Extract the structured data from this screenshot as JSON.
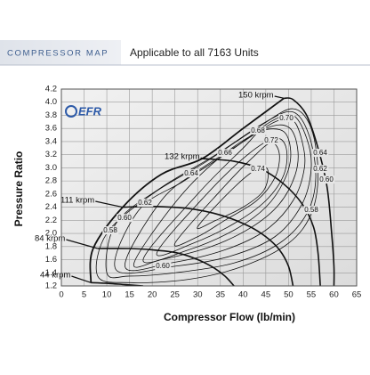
{
  "chart_data": {
    "type": "line",
    "title": "COMPRESSOR MAP",
    "subtitle": "Applicable to all 7163 Units",
    "logo": "EFR",
    "x_label": "Compressor Flow (lb/min)",
    "y_label": "Pressure Ratio",
    "xlim": [
      0,
      65
    ],
    "xticks": [
      0,
      5,
      10,
      15,
      20,
      25,
      30,
      35,
      40,
      45,
      50,
      55,
      60,
      65
    ],
    "ylim": [
      1.2,
      4.2
    ],
    "yticks": [
      1.2,
      1.4,
      1.6,
      1.8,
      {
        "value": 2,
        "label": "2.0"
      },
      2.2,
      2.4,
      2.6,
      2.8,
      {
        "value": 3,
        "label": "3.0"
      },
      3.2,
      3.4,
      3.6,
      3.8,
      {
        "value": 4,
        "label": "4.0"
      },
      4.2
    ],
    "grid": true,
    "color": "#111111",
    "series": [
      {
        "name": "44 krpm",
        "x": [
          6.5,
          10,
          14,
          18
        ],
        "values": [
          1.25,
          1.24,
          1.22,
          1.2
        ]
      },
      {
        "name": "84 krpm",
        "x": [
          8,
          15,
          20,
          25,
          29,
          33,
          36,
          38
        ],
        "values": [
          1.77,
          1.77,
          1.75,
          1.71,
          1.63,
          1.5,
          1.35,
          1.2
        ]
      },
      {
        "name": "111 krpm",
        "x": [
          13.5,
          20,
          28,
          35,
          41,
          45,
          48,
          50,
          51
        ],
        "values": [
          2.4,
          2.41,
          2.38,
          2.28,
          2.12,
          1.95,
          1.75,
          1.5,
          1.2
        ]
      },
      {
        "name": "132 krpm",
        "x": [
          31,
          38,
          44,
          49,
          53,
          55.5,
          56.5,
          57
        ],
        "values": [
          3.14,
          3.1,
          2.98,
          2.75,
          2.45,
          2.1,
          1.7,
          1.2
        ]
      },
      {
        "name": "150 krpm",
        "x": [
          49,
          51,
          54,
          56.5,
          58.5,
          59.5,
          60,
          60
        ],
        "values": [
          4.06,
          4.04,
          3.8,
          3.3,
          2.7,
          2.0,
          1.5,
          1.2
        ]
      }
    ],
    "surge_line": {
      "x": [
        6.5,
        7,
        13.5,
        22,
        31,
        40,
        49
      ],
      "values": [
        1.25,
        1.77,
        2.4,
        2.9,
        3.14,
        3.6,
        4.06
      ]
    },
    "efficiency_islands": [
      {
        "name": "0.58",
        "x": [
          8,
          10,
          20,
          32,
          44,
          51,
          55,
          56.5,
          55,
          50,
          40,
          28,
          15
        ],
        "values": [
          1.35,
          2.0,
          2.6,
          3.1,
          3.65,
          3.9,
          3.6,
          2.9,
          2.3,
          1.85,
          1.5,
          1.3,
          1.25
        ]
      },
      {
        "name": "0.60",
        "x": [
          10,
          12,
          22,
          34,
          45,
          51,
          54.5,
          56,
          54,
          48,
          38,
          25,
          15
        ],
        "values": [
          1.4,
          2.15,
          2.7,
          3.2,
          3.7,
          3.85,
          3.5,
          2.85,
          2.3,
          1.85,
          1.55,
          1.4,
          1.35
        ]
      },
      {
        "name": "0.62",
        "x": [
          12,
          17,
          27,
          37,
          46,
          51,
          54,
          55,
          53,
          47,
          37,
          25
        ],
        "values": [
          1.45,
          2.35,
          2.8,
          3.25,
          3.7,
          3.8,
          3.45,
          3.0,
          2.45,
          1.95,
          1.65,
          1.5
        ]
      },
      {
        "name": "0.64",
        "x": [
          14,
          22,
          30,
          39,
          47,
          51,
          53,
          53.5,
          51,
          45,
          36,
          24
        ],
        "values": [
          1.5,
          2.5,
          2.95,
          3.35,
          3.7,
          3.72,
          3.4,
          3.0,
          2.5,
          2.05,
          1.75,
          1.55
        ]
      },
      {
        "name": "0.66",
        "x": [
          16,
          26,
          36,
          45,
          50,
          52,
          51.5,
          48,
          42,
          33,
          22
        ],
        "values": [
          1.55,
          2.55,
          3.22,
          3.6,
          3.62,
          3.3,
          2.9,
          2.45,
          2.1,
          1.8,
          1.6
        ]
      },
      {
        "name": "0.68",
        "x": [
          18,
          30,
          40,
          44,
          49,
          50.5,
          49,
          45,
          38,
          28
        ],
        "values": [
          1.6,
          2.6,
          3.3,
          3.56,
          3.55,
          3.2,
          2.8,
          2.4,
          2.05,
          1.75
        ]
      },
      {
        "name": "0.70",
        "x": [
          21,
          32,
          41,
          47,
          49.5,
          49,
          45,
          38,
          29
        ],
        "values": [
          1.7,
          2.6,
          3.2,
          3.45,
          3.3,
          2.9,
          2.5,
          2.15,
          1.85
        ]
      },
      {
        "name": "0.72",
        "x": [
          25,
          35,
          42,
          46.2,
          48,
          47,
          43,
          36,
          30
        ],
        "values": [
          1.85,
          2.65,
          3.15,
          3.38,
          3.2,
          2.85,
          2.5,
          2.2,
          1.95
        ]
      },
      {
        "name": "0.74",
        "x": [
          30,
          38,
          43.5,
          45.5,
          44.5,
          40,
          34
        ],
        "values": [
          2.1,
          2.7,
          3.0,
          2.95,
          2.65,
          2.4,
          2.2
        ]
      }
    ]
  }
}
